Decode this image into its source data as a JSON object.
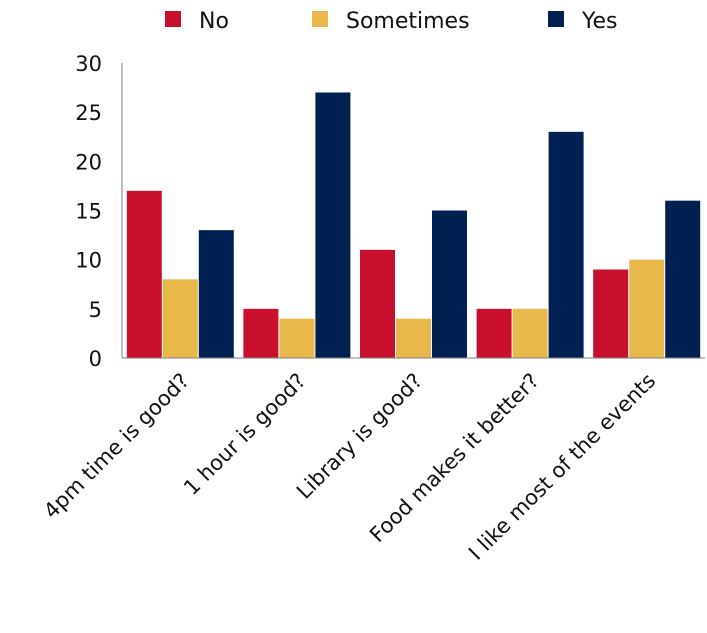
{
  "chart_data": {
    "type": "bar",
    "title": "",
    "xlabel": "",
    "ylabel": "",
    "categories": [
      "4pm time is good?",
      "1 hour is good?",
      "Library is good?",
      "Food makes it better?",
      "I like most of the events"
    ],
    "series": [
      {
        "name": "No",
        "color": "#c8102e",
        "values": [
          17,
          5,
          11,
          5,
          9
        ]
      },
      {
        "name": "Sometimes",
        "color": "#e8b84b",
        "values": [
          8,
          4,
          4,
          5,
          10
        ]
      },
      {
        "name": "Yes",
        "color": "#002052",
        "values": [
          13,
          27,
          15,
          23,
          16
        ]
      }
    ],
    "ylim": [
      0,
      30
    ],
    "yticks": [
      0,
      5,
      10,
      15,
      20,
      25,
      30
    ],
    "grid": false,
    "legend_position": "top",
    "axis_color": "#7f7f7f"
  }
}
